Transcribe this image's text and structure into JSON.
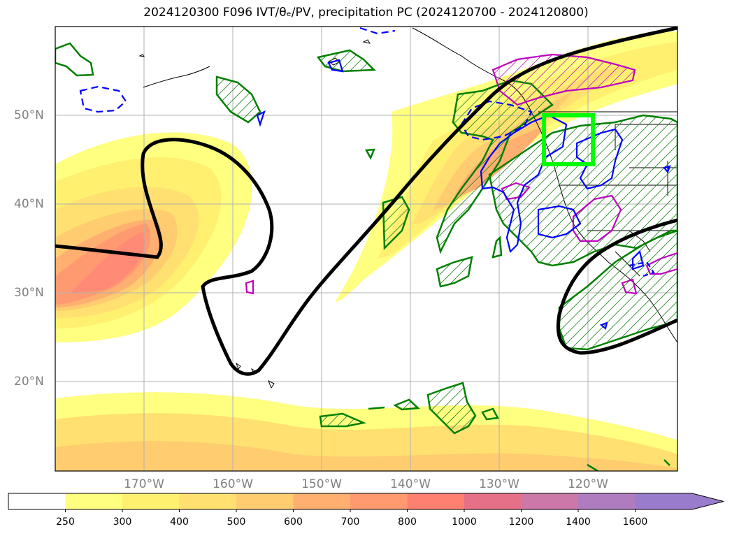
{
  "title": "2024120300 F096 IVT/θₑ/PV, precipitation PC (2024120700 - 2024120800)",
  "map": {
    "lat_labels": [
      {
        "text": "50°N",
        "lat": 50
      },
      {
        "text": "40°N",
        "lat": 40
      },
      {
        "text": "30°N",
        "lat": 30
      },
      {
        "text": "20°N",
        "lat": 20
      }
    ],
    "lon_labels": [
      {
        "text": "170°W",
        "lon": -170
      },
      {
        "text": "160°W",
        "lon": -160
      },
      {
        "text": "150°W",
        "lon": -150
      },
      {
        "text": "140°W",
        "lon": -140
      },
      {
        "text": "130°W",
        "lon": -130
      },
      {
        "text": "120°W",
        "lon": -120
      }
    ],
    "extent": {
      "lon_min": -180,
      "lon_max": -110,
      "lat_min": 10,
      "lat_max": 60
    },
    "highlight_box": {
      "lon_min": -125,
      "lon_max": -119.5,
      "lat_min": 44.5,
      "lat_max": 50,
      "color": "#00ff00"
    }
  },
  "colorbar": {
    "levels": [
      "250",
      "300",
      "400",
      "500",
      "600",
      "700",
      "800",
      "1000",
      "1200",
      "1400",
      "1600"
    ],
    "colors": [
      "#ffffff",
      "#ffff80",
      "#fff070",
      "#ffe070",
      "#ffcc70",
      "#ffb070",
      "#ff9a70",
      "#ff8070",
      "#e67088",
      "#cc78a8",
      "#b07cc0",
      "#9a7ccc"
    ]
  }
}
